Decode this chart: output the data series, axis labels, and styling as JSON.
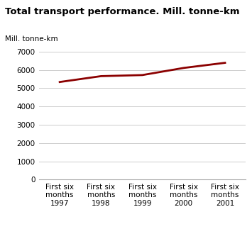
{
  "title": "Total transport performance. Mill. tonne-km",
  "ylabel": "Mill. tonne-km",
  "x_positions": [
    0,
    1,
    2,
    3,
    4
  ],
  "x_labels": [
    "First six\nmonths\n1997",
    "First six\nmonths\n1998",
    "First six\nmonths\n1999",
    "First six\nmonths\n2000",
    "First six\nmonths\n2001"
  ],
  "y_values": [
    5340,
    5660,
    5720,
    6110,
    6390
  ],
  "ylim": [
    0,
    7000
  ],
  "yticks": [
    0,
    1000,
    2000,
    3000,
    4000,
    5000,
    6000,
    7000
  ],
  "line_color": "#8b0000",
  "line_width": 2.0,
  "grid_color": "#cccccc",
  "title_color": "#000000",
  "title_bar_color": "#29aaaa",
  "bg_color": "#ffffff",
  "title_fontsize": 9.5,
  "ylabel_fontsize": 7.5,
  "tick_fontsize": 7.5
}
